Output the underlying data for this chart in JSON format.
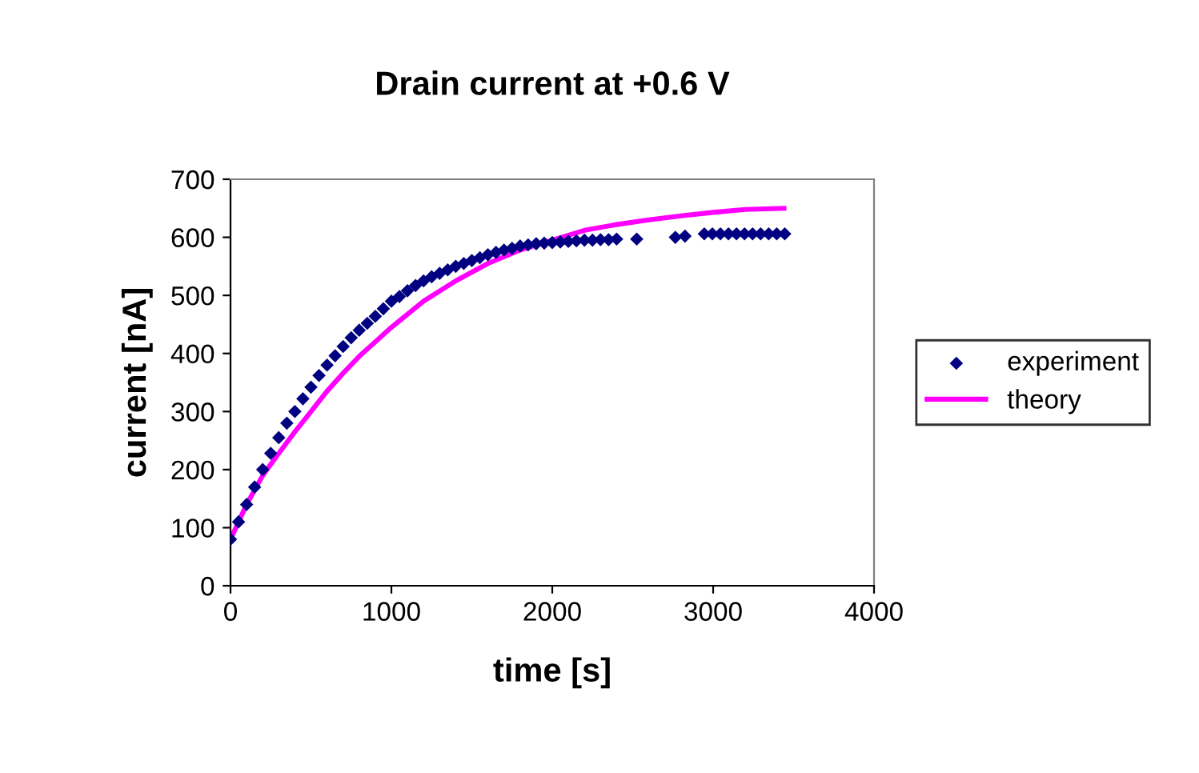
{
  "chart_data": {
    "type": "scatter",
    "title": "Drain current at +0.6 V",
    "xlabel": "time [s]",
    "ylabel": "current [nA]",
    "xlim": [
      0,
      4000
    ],
    "xticks": [
      0,
      1000,
      2000,
      3000,
      4000
    ],
    "ylim": [
      0,
      700
    ],
    "yticks": [
      0,
      100,
      200,
      300,
      400,
      500,
      600,
      700
    ],
    "grid": false,
    "legend": "right",
    "marker": "diamond",
    "series": [
      {
        "name": "experiment",
        "color": "#000080",
        "x": [
          0,
          50,
          100,
          150,
          200,
          250,
          300,
          350,
          400,
          450,
          500,
          550,
          600,
          650,
          700,
          750,
          800,
          850,
          900,
          950,
          1000,
          1050,
          1100,
          1150,
          1200,
          1250,
          1300,
          1350,
          1400,
          1450,
          1500,
          1550,
          1600,
          1650,
          1700,
          1750,
          1800,
          1850,
          1900,
          1950,
          2000,
          2050,
          2100,
          2150,
          2200,
          2250,
          2300,
          2350,
          2400,
          2525,
          2765,
          2825,
          2945,
          2995,
          3045,
          3095,
          3145,
          3195,
          3245,
          3295,
          3345,
          3395,
          3445
        ],
        "values": [
          80,
          110,
          140,
          170,
          200,
          228,
          255,
          280,
          300,
          322,
          342,
          362,
          380,
          396,
          412,
          427,
          440,
          452,
          464,
          477,
          490,
          498,
          508,
          517,
          525,
          532,
          538,
          544,
          550,
          555,
          560,
          565,
          570,
          574,
          578,
          581,
          585,
          587,
          589,
          590,
          591,
          592,
          593,
          594,
          595,
          595,
          596,
          596,
          597,
          597,
          600,
          602,
          606,
          606,
          606,
          606,
          606,
          606,
          606,
          606,
          606,
          606,
          606
        ]
      },
      {
        "name": "theory",
        "type": "line",
        "color": "#ff00ff",
        "line_style": "solid",
        "marker": "none",
        "x": [
          0,
          100,
          200,
          300,
          400,
          500,
          600,
          700,
          800,
          900,
          1000,
          1200,
          1400,
          1600,
          1800,
          2000,
          2200,
          2400,
          2600,
          2800,
          3000,
          3200,
          3440
        ],
        "values": [
          80,
          140,
          190,
          228,
          265,
          300,
          335,
          366,
          395,
          420,
          445,
          490,
          525,
          555,
          578,
          595,
          612,
          622,
          630,
          637,
          643,
          648,
          650
        ]
      }
    ]
  }
}
